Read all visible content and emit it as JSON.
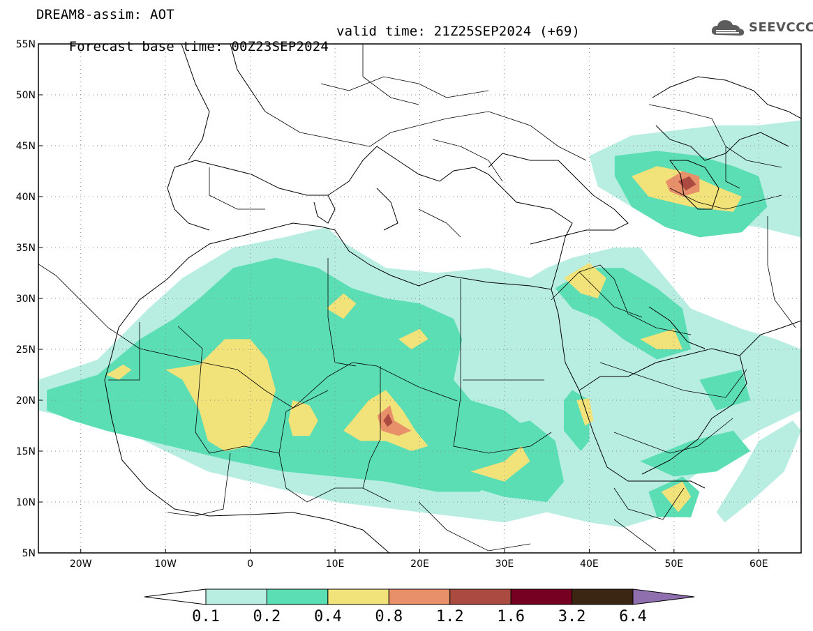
{
  "header": {
    "title": "DREAM8-assim: AOT",
    "forecast_base": "Forecast base time: 00Z23SEP2024",
    "valid_time": "valid time: 21Z25SEP2024 (+69)"
  },
  "logo": {
    "text": "SEEVCCC",
    "icon": "cloud-logo-icon"
  },
  "map": {
    "lon_range": [
      -25,
      65
    ],
    "lat_range": [
      5,
      55
    ],
    "lat_ticks": [
      {
        "value": 55,
        "label": "55N"
      },
      {
        "value": 50,
        "label": "50N"
      },
      {
        "value": 45,
        "label": "45N"
      },
      {
        "value": 40,
        "label": "40N"
      },
      {
        "value": 35,
        "label": "35N"
      },
      {
        "value": 30,
        "label": "30N"
      },
      {
        "value": 25,
        "label": "25N"
      },
      {
        "value": 20,
        "label": "20N"
      },
      {
        "value": 15,
        "label": "15N"
      },
      {
        "value": 10,
        "label": "10N"
      },
      {
        "value": 5,
        "label": "5N"
      }
    ],
    "lon_ticks": [
      {
        "value": -20,
        "label": "20W"
      },
      {
        "value": -10,
        "label": "10W"
      },
      {
        "value": 0,
        "label": "0"
      },
      {
        "value": 10,
        "label": "10E"
      },
      {
        "value": 20,
        "label": "20E"
      },
      {
        "value": 30,
        "label": "30E"
      },
      {
        "value": 40,
        "label": "40E"
      },
      {
        "value": 50,
        "label": "50E"
      },
      {
        "value": 60,
        "label": "60E"
      }
    ],
    "grid": true
  },
  "colorbar": {
    "levels": [
      "0.1",
      "0.2",
      "0.4",
      "0.8",
      "1.2",
      "1.6",
      "3.2",
      "6.4"
    ],
    "colors": [
      "#ffffff",
      "#b8eee2",
      "#5cdeb4",
      "#f2e27a",
      "#e8906a",
      "#ab4a40",
      "#760022",
      "#3a2612",
      "#8f6fad"
    ]
  },
  "fields": [
    {
      "level": "0.1-0.2",
      "color": "#b8eee2",
      "polygons": [
        [
          [
            -25,
            22
          ],
          [
            -18,
            24
          ],
          [
            -12,
            29
          ],
          [
            -8,
            32
          ],
          [
            -2,
            35
          ],
          [
            4,
            36
          ],
          [
            9,
            37
          ],
          [
            11,
            35.5
          ],
          [
            16,
            33
          ],
          [
            22,
            32.5
          ],
          [
            28,
            33
          ],
          [
            33,
            32
          ],
          [
            35,
            33
          ],
          [
            38,
            34
          ],
          [
            43,
            35
          ],
          [
            46,
            35
          ],
          [
            48,
            33
          ],
          [
            52,
            29
          ],
          [
            55,
            28
          ],
          [
            58,
            27
          ],
          [
            62,
            26
          ],
          [
            65,
            25
          ],
          [
            65,
            19
          ],
          [
            60,
            17
          ],
          [
            56,
            15
          ],
          [
            53,
            13
          ],
          [
            50,
            11
          ],
          [
            48,
            8.5
          ],
          [
            44,
            7.5
          ],
          [
            40,
            8
          ],
          [
            35,
            9
          ],
          [
            30,
            8
          ],
          [
            25,
            8.5
          ],
          [
            20,
            9
          ],
          [
            15,
            9.5
          ],
          [
            10,
            10
          ],
          [
            5,
            11
          ],
          [
            0,
            12
          ],
          [
            -5,
            13
          ],
          [
            -10,
            15
          ],
          [
            -15,
            17
          ],
          [
            -20,
            18
          ],
          [
            -25,
            19
          ]
        ],
        [
          [
            40,
            44
          ],
          [
            45,
            46
          ],
          [
            50,
            46.5
          ],
          [
            55,
            47
          ],
          [
            60,
            47
          ],
          [
            65,
            47.5
          ],
          [
            65,
            36
          ],
          [
            60,
            37
          ],
          [
            55,
            37.5
          ],
          [
            50,
            37.5
          ],
          [
            45,
            39
          ],
          [
            41,
            41
          ]
        ],
        [
          [
            60,
            16
          ],
          [
            64,
            18
          ],
          [
            65,
            17
          ],
          [
            63,
            13
          ],
          [
            59,
            10
          ],
          [
            56,
            8
          ],
          [
            55,
            9
          ],
          [
            58,
            13
          ]
        ]
      ]
    },
    {
      "level": "0.2-0.4",
      "color": "#5cdeb4",
      "polygons": [
        [
          [
            -24,
            21
          ],
          [
            -18,
            22.5
          ],
          [
            -13,
            26
          ],
          [
            -9,
            28
          ],
          [
            -6,
            30
          ],
          [
            -2,
            33
          ],
          [
            3,
            34
          ],
          [
            8,
            33
          ],
          [
            12,
            31
          ],
          [
            16,
            30
          ],
          [
            20,
            29.5
          ],
          [
            24,
            28
          ],
          [
            25,
            26
          ],
          [
            24,
            22
          ],
          [
            26,
            20
          ],
          [
            30,
            19
          ],
          [
            33,
            17
          ],
          [
            31,
            13
          ],
          [
            27,
            11
          ],
          [
            22,
            11
          ],
          [
            16,
            12
          ],
          [
            10,
            12.5
          ],
          [
            4,
            13
          ],
          [
            -2,
            14
          ],
          [
            -7,
            15
          ],
          [
            -12,
            16
          ],
          [
            -17,
            17
          ],
          [
            -21,
            18
          ],
          [
            -24,
            19
          ]
        ],
        [
          [
            28,
            17
          ],
          [
            33,
            18
          ],
          [
            36,
            16
          ],
          [
            37,
            12
          ],
          [
            35,
            10
          ],
          [
            30,
            10.5
          ],
          [
            26,
            11.5
          ]
        ],
        [
          [
            36,
            31
          ],
          [
            40,
            33
          ],
          [
            44,
            33
          ],
          [
            48,
            31
          ],
          [
            51,
            29
          ],
          [
            52,
            25
          ],
          [
            48,
            24
          ],
          [
            44,
            26
          ],
          [
            41,
            28
          ],
          [
            38,
            29
          ]
        ],
        [
          [
            38,
            21
          ],
          [
            40,
            20
          ],
          [
            40,
            16
          ],
          [
            39,
            15
          ],
          [
            37,
            17
          ],
          [
            37,
            20
          ]
        ],
        [
          [
            47,
            11
          ],
          [
            51,
            12.5
          ],
          [
            53,
            11
          ],
          [
            52,
            8.5
          ],
          [
            48,
            8.5
          ]
        ],
        [
          [
            46,
            14
          ],
          [
            52,
            16
          ],
          [
            57,
            17
          ],
          [
            59,
            15
          ],
          [
            55,
            13
          ],
          [
            50,
            12.5
          ]
        ],
        [
          [
            53,
            22
          ],
          [
            58,
            23
          ],
          [
            59,
            20
          ],
          [
            55,
            19
          ]
        ],
        [
          [
            43,
            44
          ],
          [
            48,
            44.5
          ],
          [
            53,
            44
          ],
          [
            57,
            43
          ],
          [
            60,
            42
          ],
          [
            61,
            39
          ],
          [
            58,
            36.5
          ],
          [
            53,
            36
          ],
          [
            49,
            37
          ],
          [
            45,
            39
          ],
          [
            43,
            42
          ]
        ]
      ]
    },
    {
      "level": "0.4-0.8",
      "color": "#f2e27a",
      "polygons": [
        [
          [
            -10,
            23
          ],
          [
            -6,
            23.5
          ],
          [
            -3,
            26
          ],
          [
            0,
            26
          ],
          [
            2,
            24
          ],
          [
            3,
            21
          ],
          [
            2,
            18
          ],
          [
            0,
            15.5
          ],
          [
            -3,
            15
          ],
          [
            -5,
            16
          ],
          [
            -6,
            19
          ],
          [
            -8,
            22
          ]
        ],
        [
          [
            -17,
            22.5
          ],
          [
            -15,
            23.5
          ],
          [
            -14,
            23
          ],
          [
            -15.5,
            22
          ]
        ],
        [
          [
            5,
            20
          ],
          [
            7,
            19.5
          ],
          [
            8,
            18
          ],
          [
            7,
            16.5
          ],
          [
            5,
            16.5
          ],
          [
            4.5,
            18
          ]
        ],
        [
          [
            11,
            17
          ],
          [
            14,
            20
          ],
          [
            16,
            21
          ],
          [
            18,
            19
          ],
          [
            19.5,
            17
          ],
          [
            21,
            15.5
          ],
          [
            19,
            15
          ],
          [
            16,
            16
          ],
          [
            13,
            16
          ]
        ],
        [
          [
            9,
            29
          ],
          [
            11,
            30.5
          ],
          [
            12.5,
            29.5
          ],
          [
            11,
            28
          ]
        ],
        [
          [
            17.5,
            26
          ],
          [
            20,
            27
          ],
          [
            21,
            26
          ],
          [
            19,
            25
          ]
        ],
        [
          [
            26,
            13
          ],
          [
            30,
            14
          ],
          [
            32,
            15.5
          ],
          [
            33,
            14
          ],
          [
            30,
            12
          ]
        ],
        [
          [
            37,
            32
          ],
          [
            40,
            33.5
          ],
          [
            42,
            32
          ],
          [
            41,
            30
          ],
          [
            39,
            30.5
          ]
        ],
        [
          [
            46,
            26
          ],
          [
            50,
            27
          ],
          [
            51,
            25
          ],
          [
            48,
            25
          ]
        ],
        [
          [
            38.5,
            20
          ],
          [
            40,
            20.2
          ],
          [
            40.5,
            18
          ],
          [
            39.5,
            17.5
          ]
        ],
        [
          [
            48.5,
            11
          ],
          [
            51,
            12
          ],
          [
            52,
            10.5
          ],
          [
            50.5,
            9
          ]
        ],
        [
          [
            45,
            42
          ],
          [
            48,
            43
          ],
          [
            51,
            42.5
          ],
          [
            55,
            41
          ],
          [
            58,
            40
          ],
          [
            57,
            38.5
          ],
          [
            52,
            39
          ],
          [
            47,
            40
          ]
        ]
      ]
    },
    {
      "level": "0.8-1.2",
      "color": "#e8906a",
      "polygons": [
        [
          [
            15,
            18.5
          ],
          [
            16.5,
            19.5
          ],
          [
            17,
            18
          ],
          [
            19,
            17
          ],
          [
            17.5,
            16.5
          ],
          [
            15.5,
            17
          ]
        ],
        [
          [
            49,
            41.5
          ],
          [
            51,
            42.5
          ],
          [
            53,
            42
          ],
          [
            53,
            40.5
          ],
          [
            51,
            40
          ],
          [
            49.5,
            40.5
          ]
        ]
      ]
    },
    {
      "level": "1.2-1.6",
      "color": "#ab4a40",
      "polygons": [
        [
          [
            15.7,
            18
          ],
          [
            16.3,
            18.7
          ],
          [
            16.8,
            17.8
          ],
          [
            16.2,
            17.4
          ]
        ],
        [
          [
            50.5,
            41.5
          ],
          [
            51.8,
            42
          ],
          [
            52.6,
            41.2
          ],
          [
            51.4,
            40.6
          ]
        ]
      ]
    }
  ]
}
